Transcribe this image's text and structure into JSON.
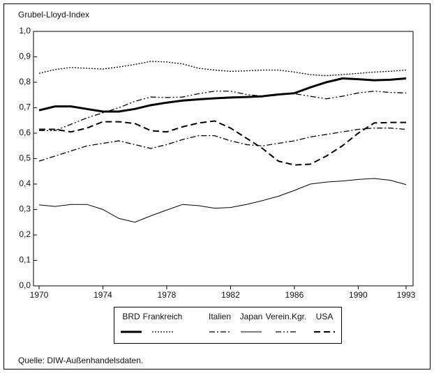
{
  "chart_data": {
    "type": "line",
    "title": "Grubel-Lloyd-Index",
    "source": "Quelle: DIW-Außenhandelsdaten.",
    "x": [
      1970,
      1971,
      1972,
      1973,
      1974,
      1975,
      1976,
      1977,
      1978,
      1979,
      1980,
      1981,
      1982,
      1983,
      1984,
      1985,
      1986,
      1987,
      1988,
      1989,
      1990,
      1991,
      1992,
      1993
    ],
    "xlim": [
      1970,
      1993
    ],
    "xticks": [
      1970,
      1974,
      1978,
      1982,
      1986,
      1990,
      1993
    ],
    "ylim": [
      0,
      1
    ],
    "yticks": [
      {
        "value": 0,
        "label": "0,0"
      },
      {
        "value": 0.1,
        "label": "0,1"
      },
      {
        "value": 0.2,
        "label": "0,2"
      },
      {
        "value": 0.3,
        "label": "0,3"
      },
      {
        "value": 0.4,
        "label": "0,4"
      },
      {
        "value": 0.5,
        "label": "0,5"
      },
      {
        "value": 0.6,
        "label": "0,6"
      },
      {
        "value": 0.7,
        "label": "0,7"
      },
      {
        "value": 0.8,
        "label": "0,8"
      },
      {
        "value": 0.9,
        "label": "0,9"
      },
      {
        "value": 1,
        "label": "1,0"
      }
    ],
    "series": [
      {
        "name": "BRD",
        "color": "#000000",
        "values": [
          0.69,
          0.705,
          0.705,
          0.695,
          0.685,
          0.685,
          0.695,
          0.71,
          0.72,
          0.728,
          0.733,
          0.737,
          0.74,
          0.742,
          0.745,
          0.752,
          0.757,
          0.78,
          0.8,
          0.815,
          0.812,
          0.808,
          0.81,
          0.815
        ]
      },
      {
        "name": "Frankreich",
        "color": "#000000",
        "values": [
          0.835,
          0.85,
          0.858,
          0.855,
          0.852,
          0.86,
          0.87,
          0.882,
          0.88,
          0.872,
          0.855,
          0.848,
          0.843,
          0.845,
          0.848,
          0.848,
          0.84,
          0.83,
          0.826,
          0.83,
          0.835,
          0.84,
          0.843,
          0.848
        ]
      },
      {
        "name": "Italien",
        "color": "#000000",
        "values": [
          0.49,
          0.51,
          0.53,
          0.55,
          0.56,
          0.57,
          0.555,
          0.54,
          0.555,
          0.575,
          0.59,
          0.59,
          0.57,
          0.555,
          0.55,
          0.56,
          0.57,
          0.585,
          0.595,
          0.605,
          0.615,
          0.62,
          0.62,
          0.615
        ]
      },
      {
        "name": "Japan",
        "color": "#000000",
        "values": [
          0.318,
          0.312,
          0.32,
          0.32,
          0.3,
          0.265,
          0.25,
          0.275,
          0.298,
          0.32,
          0.315,
          0.305,
          0.308,
          0.32,
          0.335,
          0.352,
          0.375,
          0.4,
          0.408,
          0.412,
          0.418,
          0.422,
          0.415,
          0.398
        ]
      },
      {
        "name": "Verein.Kgr.",
        "color": "#000000",
        "values": [
          0.61,
          0.61,
          0.635,
          0.66,
          0.68,
          0.7,
          0.725,
          0.742,
          0.74,
          0.742,
          0.755,
          0.765,
          0.765,
          0.752,
          0.745,
          0.752,
          0.755,
          0.745,
          0.735,
          0.745,
          0.758,
          0.765,
          0.76,
          0.758
        ]
      },
      {
        "name": "USA",
        "color": "#000000",
        "values": [
          0.615,
          0.615,
          0.605,
          0.62,
          0.645,
          0.645,
          0.638,
          0.61,
          0.605,
          0.625,
          0.64,
          0.648,
          0.62,
          0.58,
          0.54,
          0.49,
          0.475,
          0.478,
          0.51,
          0.55,
          0.6,
          0.64,
          0.642,
          0.642
        ]
      }
    ]
  }
}
